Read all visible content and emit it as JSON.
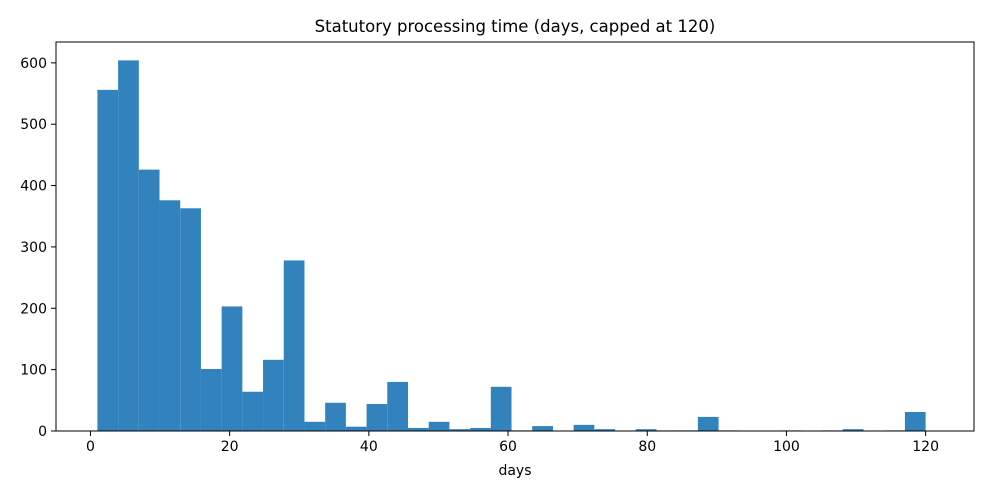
{
  "chart_data": {
    "type": "bar",
    "title": "Statutory processing time (days, capped at 120)",
    "xlabel": "days",
    "ylabel": "",
    "xlim": [
      -4.95,
      126.95
    ],
    "ylim": [
      0,
      634
    ],
    "x_ticks": [
      0,
      20,
      40,
      60,
      80,
      100,
      120
    ],
    "y_ticks": [
      0,
      100,
      200,
      300,
      400,
      500,
      600
    ],
    "grid": false,
    "bar_color": "#3182bd",
    "bins": [
      {
        "x0": 1.0,
        "x1": 3.975,
        "value": 556
      },
      {
        "x0": 3.975,
        "x1": 6.95,
        "value": 604
      },
      {
        "x0": 6.95,
        "x1": 9.925,
        "value": 426
      },
      {
        "x0": 9.925,
        "x1": 12.9,
        "value": 376
      },
      {
        "x0": 12.9,
        "x1": 15.875,
        "value": 363
      },
      {
        "x0": 15.875,
        "x1": 18.85,
        "value": 101
      },
      {
        "x0": 18.85,
        "x1": 21.825,
        "value": 203
      },
      {
        "x0": 21.825,
        "x1": 24.8,
        "value": 64
      },
      {
        "x0": 24.8,
        "x1": 27.775,
        "value": 116
      },
      {
        "x0": 27.775,
        "x1": 30.75,
        "value": 278
      },
      {
        "x0": 30.75,
        "x1": 33.725,
        "value": 15
      },
      {
        "x0": 33.725,
        "x1": 36.7,
        "value": 46
      },
      {
        "x0": 36.7,
        "x1": 39.675,
        "value": 7
      },
      {
        "x0": 39.675,
        "x1": 42.65,
        "value": 44
      },
      {
        "x0": 42.65,
        "x1": 45.625,
        "value": 80
      },
      {
        "x0": 45.625,
        "x1": 48.6,
        "value": 5
      },
      {
        "x0": 48.6,
        "x1": 51.575,
        "value": 15
      },
      {
        "x0": 51.575,
        "x1": 54.55,
        "value": 3
      },
      {
        "x0": 54.55,
        "x1": 57.525,
        "value": 5
      },
      {
        "x0": 57.525,
        "x1": 60.5,
        "value": 72
      },
      {
        "x0": 60.5,
        "x1": 63.475,
        "value": 1
      },
      {
        "x0": 63.475,
        "x1": 66.45,
        "value": 8
      },
      {
        "x0": 66.45,
        "x1": 69.425,
        "value": 0
      },
      {
        "x0": 69.425,
        "x1": 72.4,
        "value": 10
      },
      {
        "x0": 72.4,
        "x1": 75.375,
        "value": 3
      },
      {
        "x0": 75.375,
        "x1": 78.35,
        "value": 0
      },
      {
        "x0": 78.35,
        "x1": 81.325,
        "value": 3
      },
      {
        "x0": 81.325,
        "x1": 84.3,
        "value": 1
      },
      {
        "x0": 84.3,
        "x1": 87.275,
        "value": 1
      },
      {
        "x0": 87.275,
        "x1": 90.25,
        "value": 23
      },
      {
        "x0": 90.25,
        "x1": 93.225,
        "value": 1
      },
      {
        "x0": 93.225,
        "x1": 96.2,
        "value": 0
      },
      {
        "x0": 96.2,
        "x1": 99.175,
        "value": 0
      },
      {
        "x0": 99.175,
        "x1": 102.15,
        "value": 1
      },
      {
        "x0": 102.15,
        "x1": 105.125,
        "value": 0
      },
      {
        "x0": 105.125,
        "x1": 108.1,
        "value": 1
      },
      {
        "x0": 108.1,
        "x1": 111.075,
        "value": 3
      },
      {
        "x0": 111.075,
        "x1": 114.05,
        "value": 0
      },
      {
        "x0": 114.05,
        "x1": 117.025,
        "value": 1
      },
      {
        "x0": 117.025,
        "x1": 120.0,
        "value": 31
      }
    ]
  }
}
